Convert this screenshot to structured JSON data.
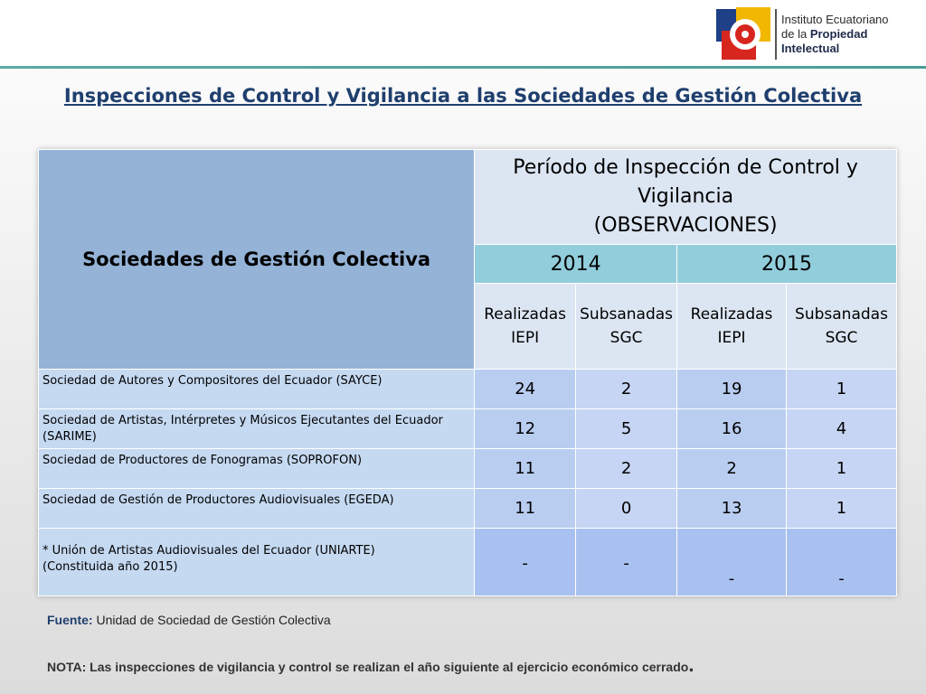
{
  "header": {
    "logo_line1": "Instituto Ecuatoriano",
    "logo_line2_prefix": "de la",
    "logo_line2_bold": "Propiedad",
    "logo_line3": "Intelectual"
  },
  "title": "Inspecciones de Control y Vigilancia a las Sociedades de Gestión Colectiva",
  "table": {
    "col_header_sgc": "Sociedades de Gestión Colectiva",
    "period_line1": "Período de Inspección de Control y",
    "period_line2": "Vigilancia",
    "period_line3": "(OBSERVACIONES)",
    "years": [
      "2014",
      "2015"
    ],
    "sub_headers": [
      {
        "l1": "Realizadas",
        "l2": "IEPI"
      },
      {
        "l1": "Subsanadas",
        "l2": "SGC"
      },
      {
        "l1": "Realizadas",
        "l2": "IEPI"
      },
      {
        "l1": "Subsanadas",
        "l2": "SGC"
      }
    ],
    "rows": [
      {
        "name_l1": "Sociedad de Autores y Compositores del Ecuador (SAYCE)",
        "name_l2": "",
        "values": [
          "24",
          "2",
          "19",
          "1"
        ]
      },
      {
        "name_l1": "Sociedad de Artistas, Intérpretes y Músicos Ejecutantes del Ecuador",
        "name_l2": "(SARIME)",
        "values": [
          "12",
          "5",
          "16",
          "4"
        ]
      },
      {
        "name_l1": "Sociedad de Productores de Fonogramas (SOPROFON)",
        "name_l2": "",
        "values": [
          "11",
          "2",
          "2",
          "1"
        ]
      },
      {
        "name_l1": "Sociedad de Gestión de Productores Audiovisuales (EGEDA)",
        "name_l2": "",
        "values": [
          "11",
          "0",
          "13",
          "1"
        ]
      },
      {
        "name_l1": "* Unión de Artistas Audiovisuales del Ecuador (UNIARTE)",
        "name_l2": "(Constituida año 2015)",
        "values": [
          "-",
          "-",
          "-",
          "-"
        ]
      }
    ]
  },
  "footer": {
    "fuente_label": "Fuente:",
    "fuente_text": "Unidad de Sociedad de Gestión Colectiva",
    "nota_text": "NOTA: Las inspecciones de vigilancia y control se realizan el año siguiente al ejercicio económico cerrado",
    "nota_period": "."
  },
  "colors": {
    "title": "#1f3f6e",
    "header_sgc": "#95b3d7",
    "header_year": "#92cddc",
    "header_period": "#dce6f2",
    "row_bg": "#c5d9f1",
    "accent_line": "#5aa9a2"
  }
}
